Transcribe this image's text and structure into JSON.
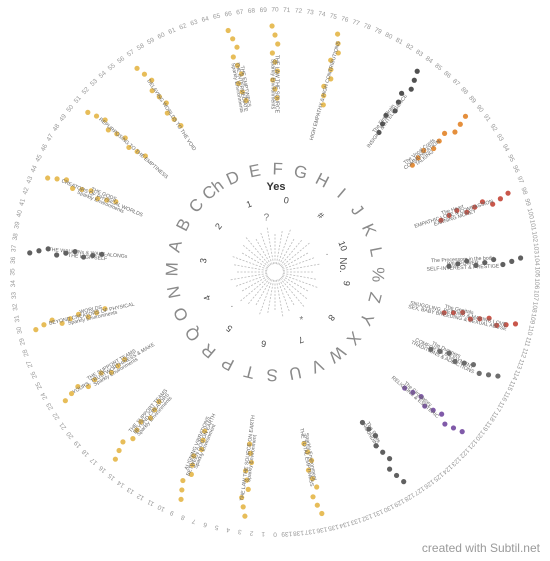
{
  "footer": {
    "credit": "created with Subtil.net"
  },
  "center": {
    "yes": "Yes",
    "no": "No."
  },
  "ring_letters": [
    "A",
    "B",
    "C",
    "Ch",
    "D",
    "E",
    "F",
    "G",
    "H",
    "I",
    "J",
    "K",
    "L",
    "%",
    "Z",
    "Y",
    "X",
    "W",
    "V",
    "U",
    "S",
    "T",
    "P",
    "R",
    "Q",
    "O",
    "N",
    "M"
  ],
  "ring_digits": [
    "0",
    "1",
    "2",
    "3",
    "4",
    "5",
    "6",
    "7",
    "8",
    "9",
    "10",
    "#"
  ],
  "ring_symbols": [
    "?",
    "·",
    "*",
    "·"
  ],
  "outer_count": 140,
  "segments": [
    {
      "label": "Sparkly Environments / THE LAW THE SOURCE",
      "pos": 70,
      "color": "#e3b23c"
    },
    {
      "label": "Sparkly Environments / THE INTERMEDIATE / THE EMPTINESS",
      "pos": 66,
      "color": "#e3b23c"
    },
    {
      "label": "HIGH EMPATHY & HIGH CONTRIBUTIONS",
      "pos": 76,
      "color": "#e3b23c"
    },
    {
      "label": "The First Brain / INSIGHT & INTELLIGENCE",
      "pos": 84,
      "color": "#333333"
    },
    {
      "label": "The Vocal Cords / COMMUNICATION / TALKING",
      "pos": 90,
      "color": "#e07b1a"
    },
    {
      "label": "The Heart / EMPATHIC LOVE & COMPASSION / EARNING MONEY",
      "pos": 98,
      "color": "#c0392b"
    },
    {
      "label": "The Processors in the body / WILLPOWER / SELF-INTEREST & PRESTIGE",
      "pos": 104,
      "color": "#444444"
    },
    {
      "label": "The Genitals / SNUGGLING, PETTING & MAKING LOVE / SEX, BABY BREEDING & SEXUAL ABUSE",
      "pos": 110,
      "color": "#c0392b"
    },
    {
      "label": "The Dumpers / COMFORT & ENJOYMENT / TRADITIONS & ADDICTIONS",
      "pos": 115,
      "color": "#555555"
    },
    {
      "label": "The Circulatory / RELIGIONS & ESOTERIC",
      "pos": 121,
      "color": "#6a3d9a"
    },
    {
      "label": "The Soles / GROUNDING",
      "pos": 128,
      "color": "#444444"
    },
    {
      "label": "Sparkly Environment / THE TOTAL EMPTINESS",
      "pos": 136,
      "color": "#e3b23c"
    },
    {
      "label": "Sparkly Environment / THE LAW THE SOURCE ON EARTH",
      "pos": 3,
      "color": "#e3b23c"
    },
    {
      "label": "Sparkly Environment / BETWEEN GOD ON EARTH / ALIGNING VIBRATIONS",
      "pos": 9,
      "color": "#e3b23c"
    },
    {
      "label": "Sparkly Environments / BEYOND CREATORS / THE SUPPORT TEAMS",
      "pos": 16,
      "color": "#e3b23c"
    },
    {
      "label": "Sparkly Environments / YOURS, TRUSTWORTHINESS & MAKE / THE SUPPORT TEAMS",
      "pos": 23,
      "color": "#e3b23c"
    },
    {
      "label": "Sparkly Environments / BEYOND CREATORS OF PHYSICAL / WORLDS",
      "pos": 30,
      "color": "#e3b23c"
    },
    {
      "label": "THE HIGH SELF / THE WALK-INs & WALK-ALONGs",
      "pos": 37,
      "color": "#444444"
    },
    {
      "label": "Sparkly Environments / CREATORS OF PHYSICAL WORLDS / THE GODS",
      "pos": 44,
      "color": "#e3b23c"
    },
    {
      "label": "REPURPOSING TO THE EMPTINESS",
      "pos": 51,
      "color": "#e3b23c"
    },
    {
      "label": "DELAYING WORLDS TO THE VOID",
      "pos": 57,
      "color": "#e3b23c"
    }
  ]
}
